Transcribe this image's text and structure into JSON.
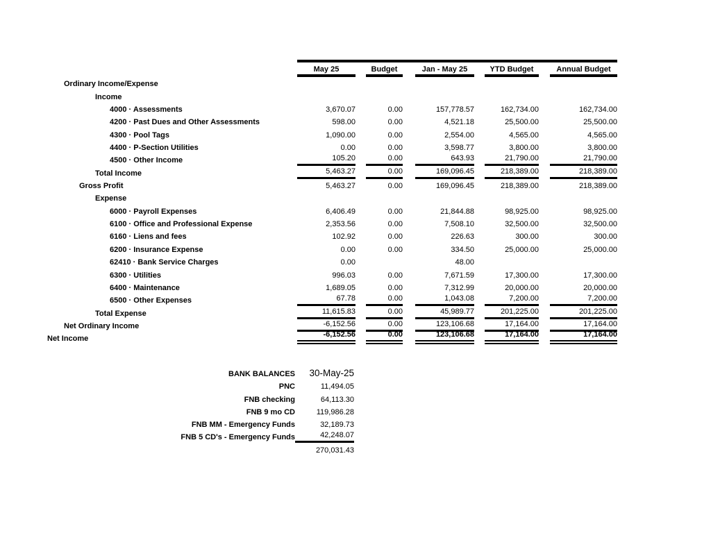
{
  "report": {
    "columns": [
      "May 25",
      "Budget",
      "Jan - May 25",
      "YTD Budget",
      "Annual Budget"
    ],
    "rows": [
      {
        "label": "Ordinary Income/Expense",
        "indent": 1,
        "values": [
          "",
          "",
          "",
          "",
          ""
        ]
      },
      {
        "label": "Income",
        "indent": 3,
        "values": [
          "",
          "",
          "",
          "",
          ""
        ]
      },
      {
        "label": "4000 · Assessments",
        "indent": 4,
        "values": [
          "3,670.07",
          "0.00",
          "157,778.57",
          "162,734.00",
          "162,734.00"
        ]
      },
      {
        "label": "4200 · Past Dues and Other Assessments",
        "indent": 4,
        "values": [
          "598.00",
          "0.00",
          "4,521.18",
          "25,500.00",
          "25,500.00"
        ]
      },
      {
        "label": "4300 · Pool Tags",
        "indent": 4,
        "values": [
          "1,090.00",
          "0.00",
          "2,554.00",
          "4,565.00",
          "4,565.00"
        ]
      },
      {
        "label": "4400 · P-Section Utilities",
        "indent": 4,
        "values": [
          "0.00",
          "0.00",
          "3,598.77",
          "3,800.00",
          "3,800.00"
        ]
      },
      {
        "label": "4500 · Other Income",
        "indent": 4,
        "values": [
          "105.20",
          "0.00",
          "643.93",
          "21,790.00",
          "21,790.00"
        ],
        "rule": true
      },
      {
        "label": "Total Income",
        "indent": 3,
        "values": [
          "5,463.27",
          "0.00",
          "169,096.45",
          "218,389.00",
          "218,389.00"
        ],
        "rule": true
      },
      {
        "label": "Gross Profit",
        "indent": 2,
        "values": [
          "5,463.27",
          "0.00",
          "169,096.45",
          "218,389.00",
          "218,389.00"
        ]
      },
      {
        "label": "Expense",
        "indent": 3,
        "values": [
          "",
          "",
          "",
          "",
          ""
        ]
      },
      {
        "label": "6000 · Payroll Expenses",
        "indent": 4,
        "values": [
          "6,406.49",
          "0.00",
          "21,844.88",
          "98,925.00",
          "98,925.00"
        ]
      },
      {
        "label": "6100 · Office and Professional Expense",
        "indent": 4,
        "values": [
          "2,353.56",
          "0.00",
          "7,508.10",
          "32,500.00",
          "32,500.00"
        ]
      },
      {
        "label": "6160 · Liens and fees",
        "indent": 4,
        "values": [
          "102.92",
          "0.00",
          "226.63",
          "300.00",
          "300.00"
        ]
      },
      {
        "label": "6200 · Insurance Expense",
        "indent": 4,
        "values": [
          "0.00",
          "0.00",
          "334.50",
          "25,000.00",
          "25,000.00"
        ]
      },
      {
        "label": "62410 · Bank Service Charges",
        "indent": 4,
        "values": [
          "0.00",
          "",
          "48.00",
          "",
          ""
        ]
      },
      {
        "label": "6300 · Utilities",
        "indent": 4,
        "values": [
          "996.03",
          "0.00",
          "7,671.59",
          "17,300.00",
          "17,300.00"
        ]
      },
      {
        "label": "6400 · Maintenance",
        "indent": 4,
        "values": [
          "1,689.05",
          "0.00",
          "7,312.99",
          "20,000.00",
          "20,000.00"
        ]
      },
      {
        "label": "6500 · Other Expenses",
        "indent": 4,
        "values": [
          "67.78",
          "0.00",
          "1,043.08",
          "7,200.00",
          "7,200.00"
        ],
        "rule": true
      },
      {
        "label": "Total Expense",
        "indent": 3,
        "values": [
          "11,615.83",
          "0.00",
          "45,989.77",
          "201,225.00",
          "201,225.00"
        ],
        "rule": true
      },
      {
        "label": "Net Ordinary Income",
        "indent": 1,
        "values": [
          "-6,152.56",
          "0.00",
          "123,106.68",
          "17,164.00",
          "17,164.00"
        ],
        "rule": true
      },
      {
        "label": "Net Income",
        "indent": 0,
        "values": [
          "-6,152.56",
          "0.00",
          "123,106.68",
          "17,164.00",
          "17,164.00"
        ],
        "double_rule": true,
        "bold_values": true
      }
    ]
  },
  "bank": {
    "title": "BANK BALANCES",
    "date": "30-May-25",
    "rows": [
      {
        "label": "PNC",
        "value": "11,494.05"
      },
      {
        "label": "FNB checking",
        "value": "64,113.30"
      },
      {
        "label": "FNB 9 mo CD",
        "value": "119,986.28"
      },
      {
        "label": "FNB MM - Emergency Funds",
        "value": "32,189.73"
      },
      {
        "label": "FNB 5 CD's - Emergency Funds",
        "value": "42,248.07",
        "rule": true
      }
    ],
    "total": "270,031.43"
  }
}
